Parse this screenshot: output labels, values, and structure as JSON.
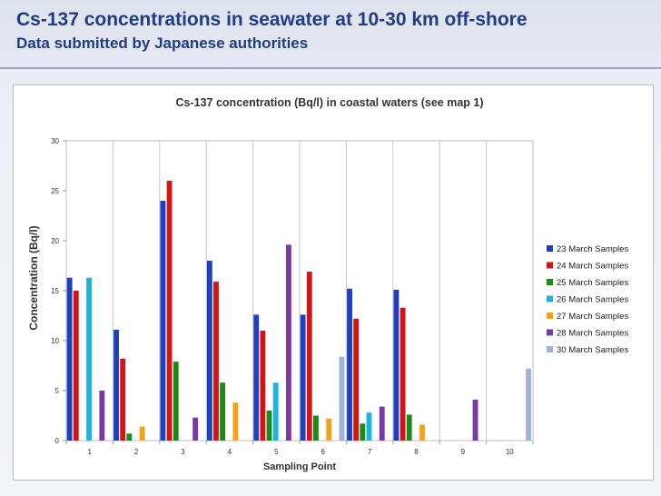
{
  "slide": {
    "title": "Cs-137 concentrations in seawater at 10-30 km off-shore",
    "subtitle": "Data submitted by Japanese authorities"
  },
  "chart_data": {
    "type": "bar",
    "title": "Cs-137 concentration (Bq/l)  in coastal waters (see map 1)",
    "xlabel": "Sampling Point",
    "ylabel": "Concentration (Bq/l)",
    "ylim": [
      0,
      30
    ],
    "yticks": [
      "0",
      "5",
      "10",
      "15",
      "20",
      "25",
      "30"
    ],
    "categories": [
      "1",
      "2",
      "3",
      "4",
      "5",
      "6",
      "7",
      "8",
      "9",
      "10"
    ],
    "grid": "vertical",
    "legend_position": "right",
    "series": [
      {
        "name": "23 March Samples",
        "color": "#1f3fbf",
        "values": [
          16.3,
          11.1,
          24.0,
          18.0,
          12.6,
          12.6,
          15.2,
          15.1,
          null,
          null
        ]
      },
      {
        "name": "24 March Samples",
        "color": "#d41414",
        "values": [
          15.0,
          8.2,
          26.0,
          15.9,
          11.0,
          16.9,
          12.2,
          13.3,
          null,
          null
        ]
      },
      {
        "name": "25 March Samples",
        "color": "#1a8a1a",
        "values": [
          null,
          0.7,
          7.9,
          5.8,
          3.0,
          2.5,
          1.7,
          2.6,
          null,
          null
        ]
      },
      {
        "name": "26 March Samples",
        "color": "#1fb3e0",
        "values": [
          16.3,
          null,
          null,
          null,
          5.8,
          null,
          2.8,
          null,
          null,
          null
        ]
      },
      {
        "name": "27 March Samples",
        "color": "#f5a21b",
        "values": [
          null,
          1.4,
          null,
          3.8,
          null,
          2.2,
          null,
          1.6,
          null,
          null
        ]
      },
      {
        "name": "28 March Samples",
        "color": "#7b3aa3",
        "values": [
          5.0,
          null,
          2.3,
          null,
          19.6,
          null,
          3.4,
          null,
          4.1,
          null
        ]
      },
      {
        "name": "30 March Samples",
        "color": "#9fb3d6",
        "values": [
          null,
          null,
          null,
          null,
          null,
          8.4,
          null,
          null,
          null,
          7.2
        ]
      }
    ]
  }
}
